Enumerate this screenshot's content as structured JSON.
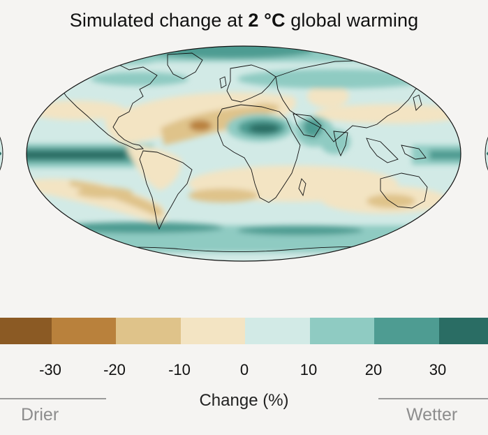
{
  "title": {
    "prefix": "Simulated change at ",
    "bold": "2 °C",
    "suffix": " global warming"
  },
  "legend": {
    "axis_label": "Change (%)",
    "drier_label": "Drier",
    "wetter_label": "Wetter",
    "ticks": [
      "-30",
      "-20",
      "-10",
      "0",
      "10",
      "20",
      "30"
    ],
    "colors": [
      "#8b5a24",
      "#b9813c",
      "#dfc38a",
      "#f3e4c3",
      "#d2eae6",
      "#8fcbc2",
      "#4e9c92",
      "#2a6d64"
    ]
  },
  "map": {
    "projection": "robinson",
    "ocean_base_color": "#d2eae6"
  }
}
